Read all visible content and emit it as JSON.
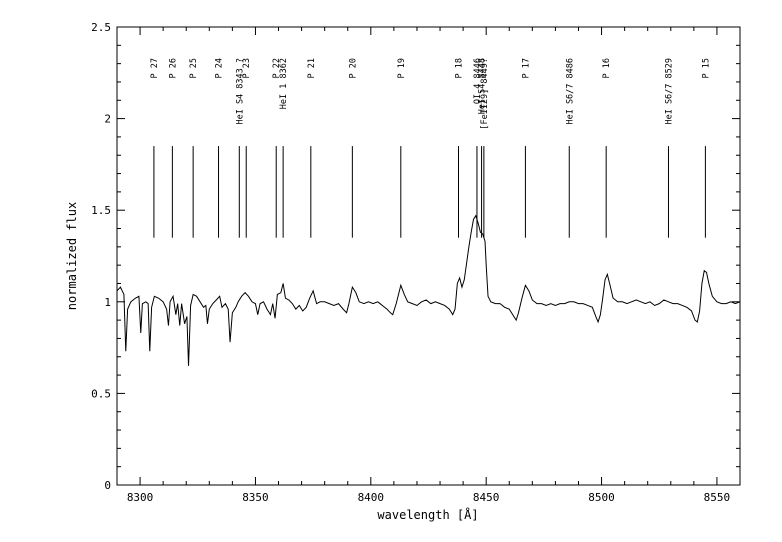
{
  "chart_data": {
    "type": "line",
    "title": "",
    "xlabel": "wavelength [Å]",
    "ylabel": "normalized flux",
    "xlim": [
      8290,
      8560
    ],
    "ylim": [
      0,
      2.5
    ],
    "x_ticks": [
      {
        "value": 8300,
        "label": "8300"
      },
      {
        "value": 8350,
        "label": "8350"
      },
      {
        "value": 8400,
        "label": "8400"
      },
      {
        "value": 8450,
        "label": "8450"
      },
      {
        "value": 8500,
        "label": "8500"
      },
      {
        "value": 8550,
        "label": "8550"
      }
    ],
    "y_ticks": [
      {
        "value": 0,
        "label": "0"
      },
      {
        "value": 0.5,
        "label": "0.5"
      },
      {
        "value": 1,
        "label": "1"
      },
      {
        "value": 1.5,
        "label": "1.5"
      },
      {
        "value": 2,
        "label": "2"
      },
      {
        "value": 2.5,
        "label": "2.5"
      }
    ],
    "line_markers": [
      {
        "label": "P 27",
        "x": 8306,
        "lines": [
          "P 27"
        ]
      },
      {
        "label": "P 26",
        "x": 8314,
        "lines": [
          "P 26"
        ]
      },
      {
        "label": "P 25",
        "x": 8323,
        "lines": [
          "P 25"
        ]
      },
      {
        "label": "P 24",
        "x": 8334,
        "lines": [
          "P 24"
        ]
      },
      {
        "label": "HeI S4 8343 ?",
        "x": 8343,
        "lines": [
          "HeI S4 8343 ?"
        ]
      },
      {
        "label": "P 23",
        "x": 8346,
        "lines": [
          "P 23"
        ]
      },
      {
        "label": "P 22",
        "x": 8359,
        "lines": [
          "P 22"
        ]
      },
      {
        "label": "HeI 1 8362",
        "x": 8362,
        "lines": [
          "HeI 1 8362"
        ]
      },
      {
        "label": "P 21",
        "x": 8374,
        "lines": [
          "P 21"
        ]
      },
      {
        "label": "P 20",
        "x": 8392,
        "lines": [
          "P 20"
        ]
      },
      {
        "label": "P 19",
        "x": 8413,
        "lines": [
          "P 19"
        ]
      },
      {
        "label": "P 18",
        "x": 8438,
        "lines": [
          "P 18"
        ]
      },
      {
        "label": "OI 4 8446",
        "x": 8446,
        "lines": [
          "OI 4 8446"
        ]
      },
      {
        "label": "HeI S4 8448",
        "x": 8448,
        "lines": [
          "HeI S4 8448"
        ]
      },
      {
        "label": "[FeII29] 8449?",
        "x": 8449,
        "lines": [
          "[FeII29] 8449?"
        ]
      },
      {
        "label": "P 17",
        "x": 8467,
        "lines": [
          "P 17"
        ]
      },
      {
        "label": "HeI S6/7 8486",
        "x": 8486,
        "lines": [
          "HeI S6/7 8486"
        ]
      },
      {
        "label": "P 16",
        "x": 8502,
        "lines": [
          "P 16"
        ]
      },
      {
        "label": "HeI S6/7 8529",
        "x": 8529,
        "lines": [
          "HeI S6/7 8529"
        ]
      },
      {
        "label": "P 15",
        "x": 8545,
        "lines": [
          "P 15"
        ]
      }
    ],
    "series": [
      {
        "points": [
          [
            8290.0,
            1.06
          ],
          [
            8291.5,
            1.08
          ],
          [
            8293.0,
            1.04
          ],
          [
            8293.8,
            0.73
          ],
          [
            8294.6,
            0.96
          ],
          [
            8296.0,
            1.0
          ],
          [
            8298.0,
            1.02
          ],
          [
            8299.5,
            1.03
          ],
          [
            8300.3,
            0.83
          ],
          [
            8301.0,
            0.99
          ],
          [
            8302.5,
            1.0
          ],
          [
            8303.5,
            0.99
          ],
          [
            8304.2,
            0.73
          ],
          [
            8305.0,
            0.97
          ],
          [
            8306.2,
            1.03
          ],
          [
            8308.0,
            1.02
          ],
          [
            8310.0,
            1.0
          ],
          [
            8311.5,
            0.96
          ],
          [
            8312.3,
            0.87
          ],
          [
            8313.0,
            1.0
          ],
          [
            8314.3,
            1.03
          ],
          [
            8315.5,
            0.93
          ],
          [
            8316.3,
            0.99
          ],
          [
            8317.2,
            0.87
          ],
          [
            8318.0,
            0.99
          ],
          [
            8319.3,
            0.88
          ],
          [
            8320.3,
            0.92
          ],
          [
            8321.0,
            0.65
          ],
          [
            8321.9,
            0.98
          ],
          [
            8323.0,
            1.04
          ],
          [
            8324.5,
            1.03
          ],
          [
            8326.0,
            1.0
          ],
          [
            8327.5,
            0.97
          ],
          [
            8328.5,
            0.98
          ],
          [
            8329.2,
            0.88
          ],
          [
            8330.0,
            0.96
          ],
          [
            8331.5,
            0.99
          ],
          [
            8333.0,
            1.01
          ],
          [
            8334.5,
            1.03
          ],
          [
            8335.5,
            0.97
          ],
          [
            8337.0,
            0.99
          ],
          [
            8338.2,
            0.96
          ],
          [
            8339.0,
            0.78
          ],
          [
            8340.0,
            0.94
          ],
          [
            8341.5,
            0.97
          ],
          [
            8342.5,
            1.0
          ],
          [
            8344.0,
            1.03
          ],
          [
            8345.5,
            1.05
          ],
          [
            8347.0,
            1.03
          ],
          [
            8348.5,
            1.0
          ],
          [
            8350.0,
            0.99
          ],
          [
            8351.0,
            0.93
          ],
          [
            8352.0,
            0.99
          ],
          [
            8353.5,
            1.0
          ],
          [
            8355.0,
            0.96
          ],
          [
            8356.5,
            0.93
          ],
          [
            8357.5,
            0.99
          ],
          [
            8358.5,
            0.91
          ],
          [
            8359.5,
            1.04
          ],
          [
            8361.0,
            1.05
          ],
          [
            8362.0,
            1.1
          ],
          [
            8363.0,
            1.02
          ],
          [
            8364.5,
            1.01
          ],
          [
            8366.0,
            0.99
          ],
          [
            8367.5,
            0.96
          ],
          [
            8369.0,
            0.98
          ],
          [
            8370.5,
            0.95
          ],
          [
            8372.0,
            0.97
          ],
          [
            8373.5,
            1.02
          ],
          [
            8375.0,
            1.06
          ],
          [
            8376.5,
            0.99
          ],
          [
            8378.0,
            1.0
          ],
          [
            8380.0,
            1.0
          ],
          [
            8382.0,
            0.99
          ],
          [
            8384.0,
            0.98
          ],
          [
            8386.0,
            0.99
          ],
          [
            8388.0,
            0.96
          ],
          [
            8389.5,
            0.94
          ],
          [
            8390.5,
            0.99
          ],
          [
            8392.0,
            1.08
          ],
          [
            8393.5,
            1.05
          ],
          [
            8395.0,
            1.0
          ],
          [
            8397.0,
            0.99
          ],
          [
            8399.0,
            1.0
          ],
          [
            8401.0,
            0.99
          ],
          [
            8403.0,
            1.0
          ],
          [
            8405.0,
            0.98
          ],
          [
            8407.0,
            0.96
          ],
          [
            8408.5,
            0.94
          ],
          [
            8409.5,
            0.93
          ],
          [
            8411.0,
            0.99
          ],
          [
            8413.0,
            1.09
          ],
          [
            8414.5,
            1.04
          ],
          [
            8416.0,
            1.0
          ],
          [
            8418.0,
            0.99
          ],
          [
            8420.0,
            0.98
          ],
          [
            8422.0,
            1.0
          ],
          [
            8424.0,
            1.01
          ],
          [
            8426.0,
            0.99
          ],
          [
            8428.0,
            1.0
          ],
          [
            8430.0,
            0.99
          ],
          [
            8432.0,
            0.98
          ],
          [
            8434.0,
            0.96
          ],
          [
            8435.5,
            0.93
          ],
          [
            8436.5,
            0.96
          ],
          [
            8437.5,
            1.1
          ],
          [
            8438.5,
            1.13
          ],
          [
            8439.5,
            1.08
          ],
          [
            8440.5,
            1.12
          ],
          [
            8441.5,
            1.21
          ],
          [
            8442.5,
            1.3
          ],
          [
            8443.5,
            1.38
          ],
          [
            8444.5,
            1.45
          ],
          [
            8445.5,
            1.47
          ],
          [
            8446.5,
            1.43
          ],
          [
            8447.5,
            1.38
          ],
          [
            8448.5,
            1.37
          ],
          [
            8449.5,
            1.33
          ],
          [
            8450.0,
            1.2
          ],
          [
            8450.8,
            1.03
          ],
          [
            8452.0,
            1.0
          ],
          [
            8454.0,
            0.99
          ],
          [
            8456.0,
            0.99
          ],
          [
            8458.0,
            0.97
          ],
          [
            8460.0,
            0.96
          ],
          [
            8462.0,
            0.92
          ],
          [
            8463.0,
            0.9
          ],
          [
            8464.0,
            0.94
          ],
          [
            8465.5,
            1.02
          ],
          [
            8467.0,
            1.09
          ],
          [
            8468.5,
            1.06
          ],
          [
            8470.0,
            1.01
          ],
          [
            8472.0,
            0.99
          ],
          [
            8474.0,
            0.99
          ],
          [
            8476.0,
            0.98
          ],
          [
            8478.0,
            0.99
          ],
          [
            8480.0,
            0.98
          ],
          [
            8482.0,
            0.99
          ],
          [
            8484.0,
            0.99
          ],
          [
            8486.0,
            1.0
          ],
          [
            8488.0,
            1.0
          ],
          [
            8490.0,
            0.99
          ],
          [
            8492.0,
            0.99
          ],
          [
            8494.0,
            0.98
          ],
          [
            8496.0,
            0.97
          ],
          [
            8497.5,
            0.92
          ],
          [
            8498.5,
            0.89
          ],
          [
            8499.5,
            0.93
          ],
          [
            8500.5,
            1.02
          ],
          [
            8501.5,
            1.12
          ],
          [
            8502.5,
            1.15
          ],
          [
            8503.5,
            1.1
          ],
          [
            8505.0,
            1.02
          ],
          [
            8507.0,
            1.0
          ],
          [
            8509.0,
            1.0
          ],
          [
            8511.0,
            0.99
          ],
          [
            8513.0,
            1.0
          ],
          [
            8515.0,
            1.01
          ],
          [
            8517.0,
            1.0
          ],
          [
            8519.0,
            0.99
          ],
          [
            8521.0,
            1.0
          ],
          [
            8523.0,
            0.98
          ],
          [
            8525.0,
            0.99
          ],
          [
            8527.0,
            1.01
          ],
          [
            8529.0,
            1.0
          ],
          [
            8531.0,
            0.99
          ],
          [
            8533.0,
            0.99
          ],
          [
            8535.0,
            0.98
          ],
          [
            8537.0,
            0.97
          ],
          [
            8539.0,
            0.95
          ],
          [
            8540.5,
            0.9
          ],
          [
            8541.5,
            0.89
          ],
          [
            8542.5,
            0.95
          ],
          [
            8543.5,
            1.1
          ],
          [
            8544.5,
            1.17
          ],
          [
            8545.5,
            1.16
          ],
          [
            8546.5,
            1.1
          ],
          [
            8548.0,
            1.03
          ],
          [
            8550.0,
            1.0
          ],
          [
            8552.0,
            0.99
          ],
          [
            8554.0,
            0.99
          ],
          [
            8556.0,
            1.0
          ],
          [
            8558.0,
            0.99
          ],
          [
            8560.0,
            1.0
          ]
        ]
      }
    ]
  }
}
